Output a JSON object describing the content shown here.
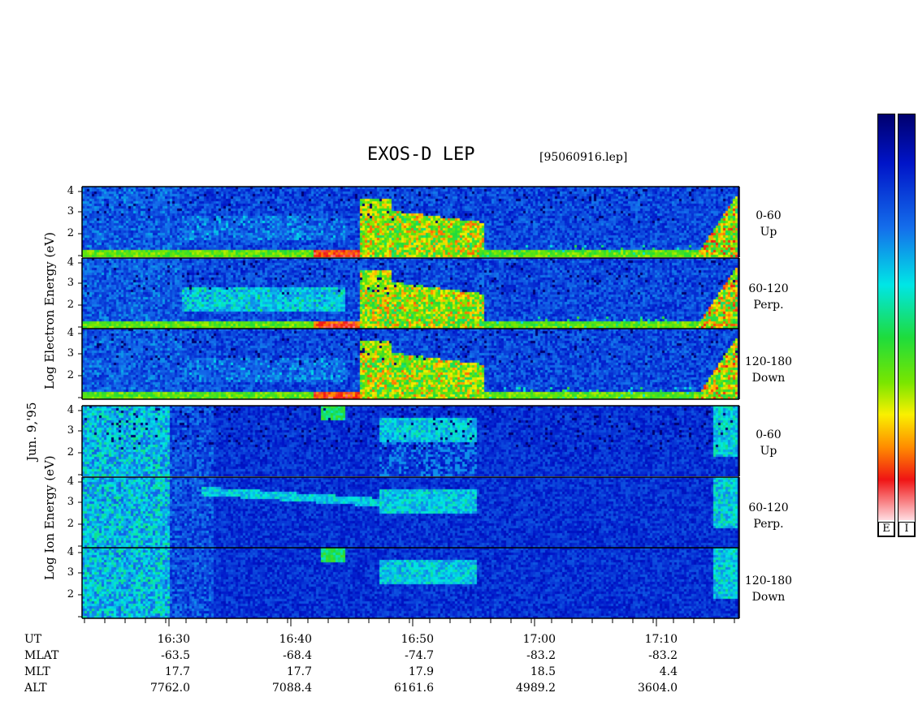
{
  "header": {
    "title": "EXOS-D LEP",
    "filename": "[95060916.lep]"
  },
  "side_labels": {
    "date": "Jun. 9,'95",
    "electron_axis": "Log   Electron   Energy  (eV)",
    "ion_axis": "Log   Ion   Energy  (eV)"
  },
  "panels": [
    {
      "id": "e-up",
      "species": "Electron",
      "range": "0-60",
      "dir": "Up"
    },
    {
      "id": "e-perp",
      "species": "Electron",
      "range": "60-120",
      "dir": "Perp."
    },
    {
      "id": "e-down",
      "species": "Electron",
      "range": "120-180",
      "dir": "Down"
    },
    {
      "id": "i-up",
      "species": "Ion",
      "range": "0-60",
      "dir": "Up"
    },
    {
      "id": "i-perp",
      "species": "Ion",
      "range": "60-120",
      "dir": "Perp."
    },
    {
      "id": "i-down",
      "species": "Ion",
      "range": "120-180",
      "dir": "Down"
    }
  ],
  "colorbars": {
    "electron_label": "E",
    "ion_label": "I"
  },
  "chart_data": {
    "type": "heatmap",
    "title": "EXOS-D LEP",
    "subtitle": "[95060916.lep]",
    "ylabel_electron": "Log Electron Energy (eV)",
    "ylabel_ion": "Log Ion Energy (eV)",
    "yticks": [
      "1",
      "2",
      "3",
      "4"
    ],
    "ylim": [
      1,
      4.2
    ],
    "x_range_minutes": [
      16.37,
      17.3
    ],
    "table_rows": [
      {
        "label": "UT",
        "values": [
          "16:30",
          "16:40",
          "16:50",
          "17:00",
          "17:10"
        ]
      },
      {
        "label": "MLAT",
        "values": [
          "-63.5",
          "-68.4",
          "-74.7",
          "-83.2",
          "-83.2"
        ]
      },
      {
        "label": "MLT",
        "values": [
          "17.7",
          "17.7",
          "17.9",
          "18.5",
          "4.4"
        ]
      },
      {
        "label": "ALT",
        "values": [
          "7762.0",
          "7088.4",
          "6161.6",
          "4989.2",
          "3604.0"
        ]
      }
    ]
  }
}
